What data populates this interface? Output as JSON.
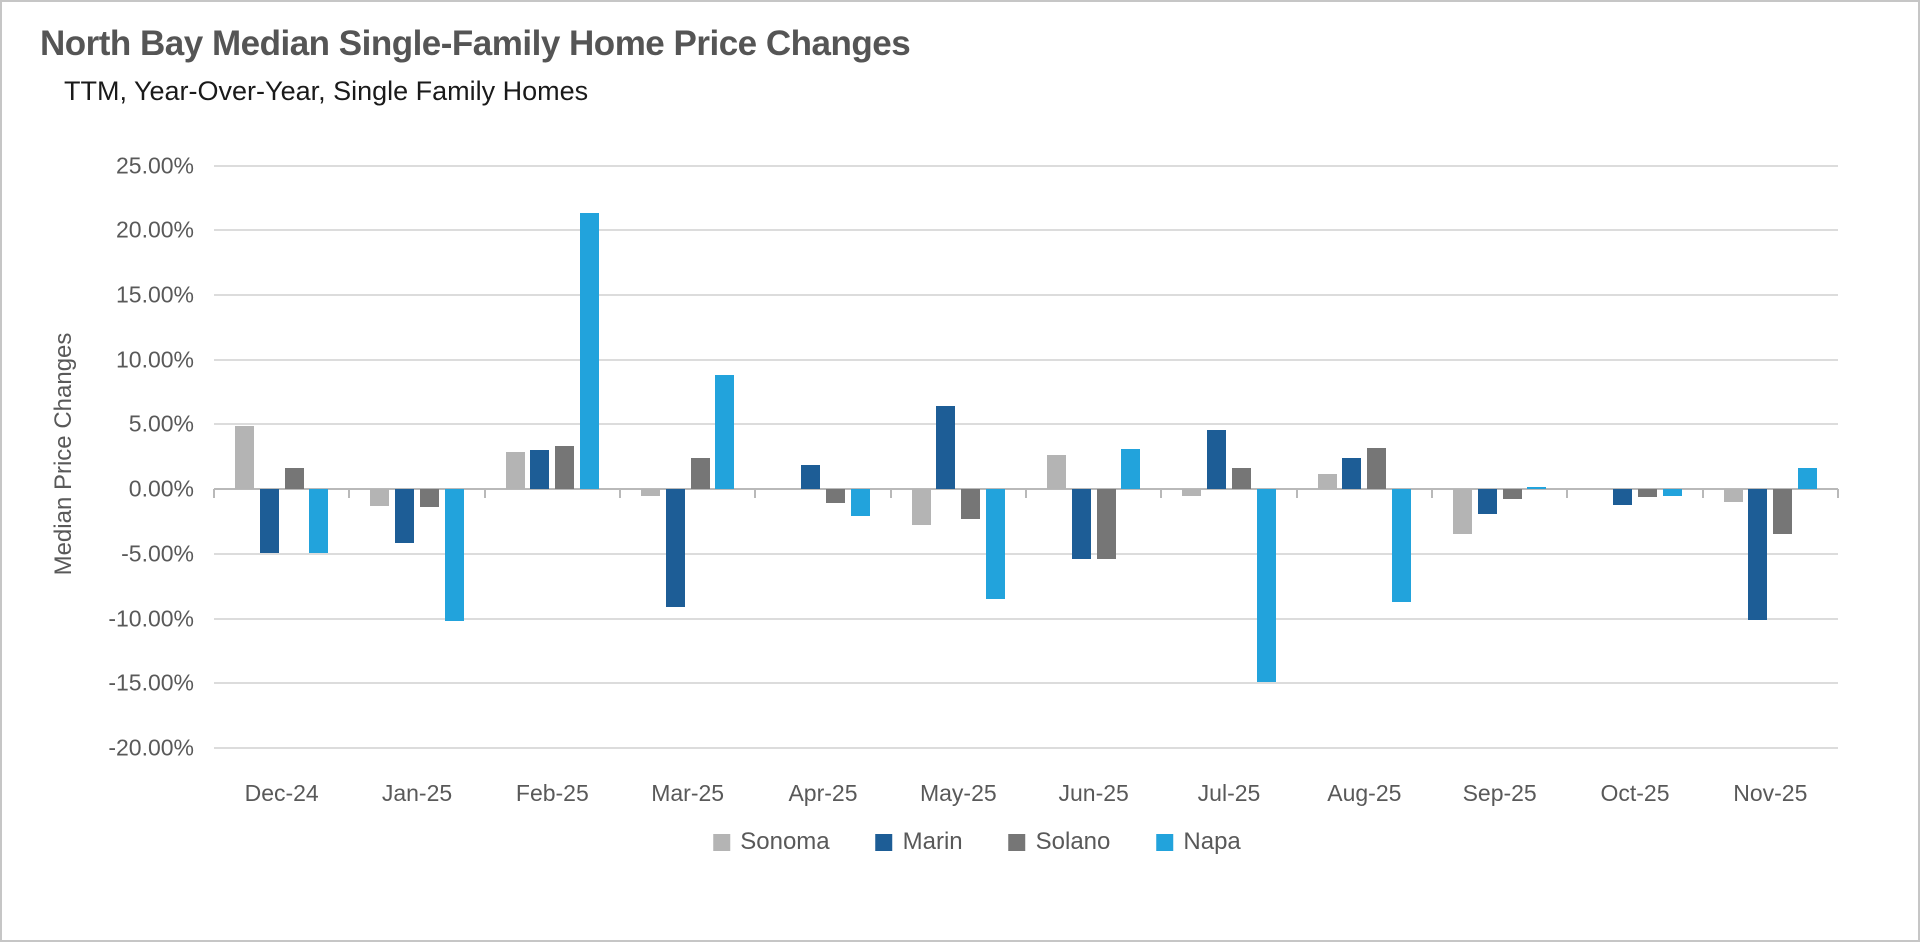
{
  "page": {
    "background": "#ffffff",
    "border_color": "#c6c6c6"
  },
  "header": {
    "title": "North Bay Median Single-Family Home Price Changes",
    "subtitle": "TTM, Year-Over-Year, Single Family Homes"
  },
  "colors": {
    "title_text": "#555555",
    "subtitle_text": "#1a1a1a",
    "axis_text": "#595959",
    "gridline": "#dcdcdc",
    "zero_line": "#b9b9b9"
  },
  "chart_data": {
    "type": "bar",
    "title": "North Bay Median Single-Family Home Price Changes",
    "subtitle": "TTM, Year-Over-Year, Single Family Homes",
    "xlabel": "",
    "ylabel": "Median Price Changes",
    "ylim": [
      -20,
      25
    ],
    "y_tick_step": 5,
    "y_tick_values": [
      25,
      20,
      15,
      10,
      5,
      0,
      -5,
      -10,
      -15,
      -20
    ],
    "y_tick_labels": [
      "25.00%",
      "20.00%",
      "15.00%",
      "10.00%",
      "5.00%",
      "0.00%",
      "-5.00%",
      "-10.00%",
      "-15.00%",
      "-20.00%"
    ],
    "grid": true,
    "legend_position": "bottom",
    "categories": [
      "Dec-24",
      "Jan-25",
      "Feb-25",
      "Mar-25",
      "Apr-25",
      "May-25",
      "Jun-25",
      "Jul-25",
      "Aug-25",
      "Sep-25",
      "Oct-25",
      "Nov-25"
    ],
    "series": [
      {
        "name": "Sonoma",
        "color": "#b4b4b4",
        "values": [
          4.9,
          -1.3,
          2.9,
          -0.5,
          0.0,
          -2.8,
          2.6,
          -0.5,
          1.2,
          -3.5,
          0.0,
          -1.0
        ]
      },
      {
        "name": "Marin",
        "color": "#1d5d96",
        "values": [
          -4.9,
          -4.2,
          3.0,
          -9.1,
          1.9,
          6.4,
          -5.4,
          4.6,
          2.4,
          -1.9,
          -1.2,
          -10.1
        ]
      },
      {
        "name": "Solano",
        "color": "#767676",
        "values": [
          1.6,
          -1.4,
          3.3,
          2.4,
          -1.1,
          -2.3,
          -5.4,
          1.6,
          3.2,
          -0.8,
          -0.6,
          -3.5
        ]
      },
      {
        "name": "Napa",
        "color": "#22a3dc",
        "values": [
          -4.9,
          -10.2,
          21.3,
          8.8,
          -2.1,
          -8.5,
          3.1,
          -14.9,
          -8.7,
          0.2,
          -0.5,
          1.6
        ]
      }
    ]
  }
}
